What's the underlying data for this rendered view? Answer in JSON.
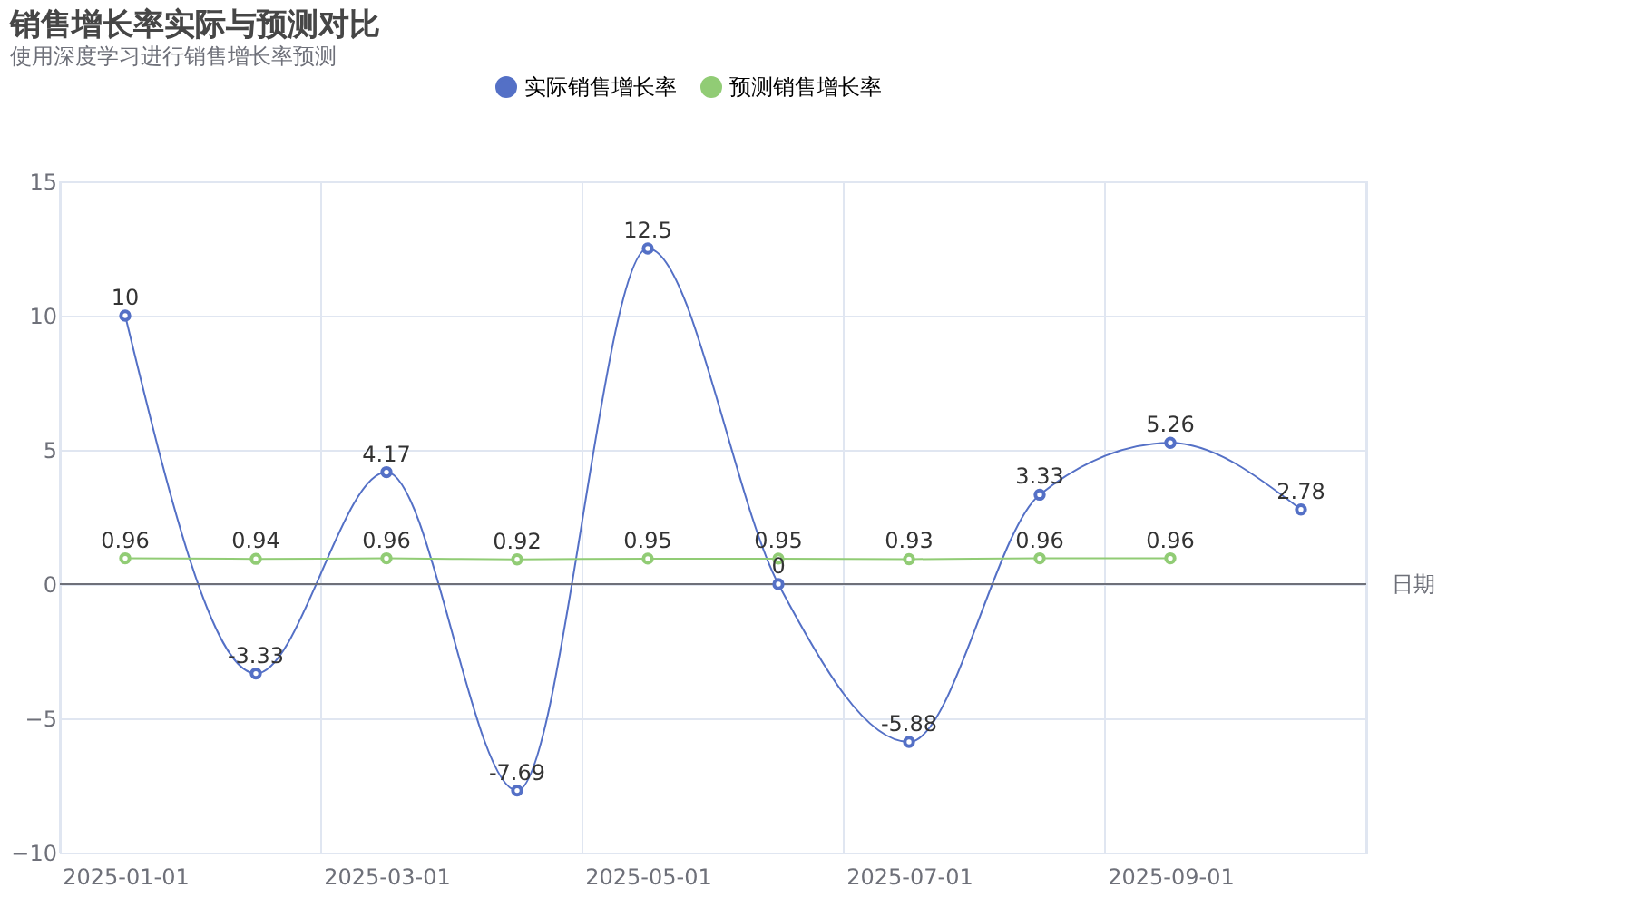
{
  "chart_data": {
    "type": "line",
    "title": "销售增长率实际与预测对比",
    "subtitle": "使用深度学习进行销售增长率预测",
    "xlabel": "日期",
    "categories": [
      "2025-01-01",
      null,
      "2025-03-01",
      null,
      "2025-05-01",
      null,
      "2025-07-01",
      null,
      "2025-09-01",
      null
    ],
    "series": [
      {
        "name": "实际销售增长率",
        "color": "#5470c6",
        "values": [
          10,
          -3.33,
          4.17,
          -7.69,
          12.5,
          0,
          -5.88,
          3.33,
          5.26,
          2.78
        ]
      },
      {
        "name": "预测销售增长率",
        "color": "#91cc75",
        "values": [
          0.96,
          0.94,
          0.96,
          0.92,
          0.95,
          0.95,
          0.93,
          0.96,
          0.96,
          null
        ]
      }
    ],
    "ylim": [
      -10,
      15
    ],
    "yticks": [
      -10,
      -5,
      0,
      5,
      10,
      15
    ],
    "grid": true,
    "legend": "top",
    "marker": "circle",
    "line_style": "solid",
    "data_labels": true
  }
}
